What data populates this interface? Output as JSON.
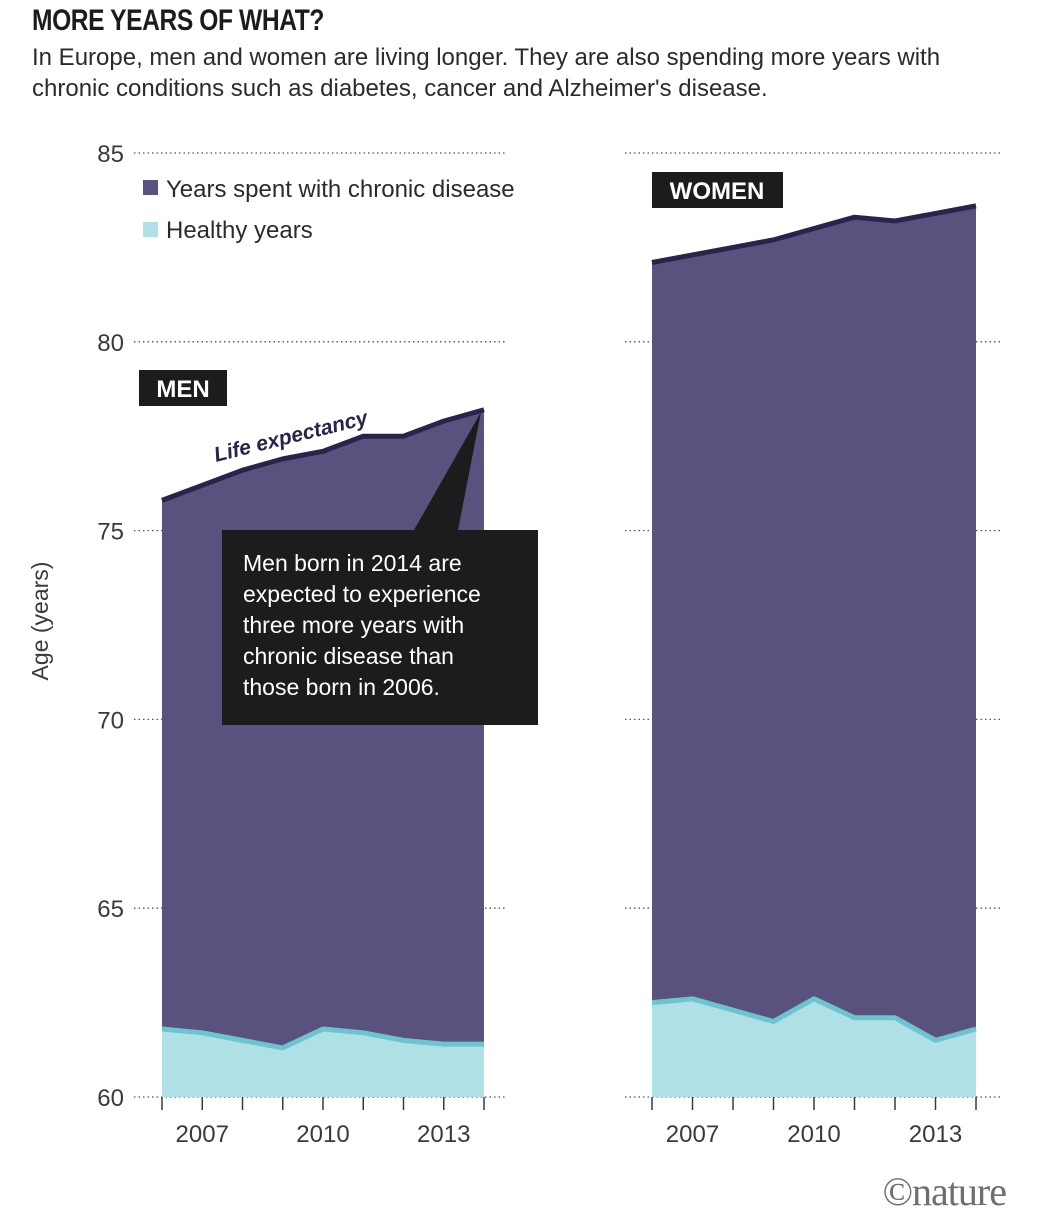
{
  "header": {
    "title": "MORE YEARS OF WHAT?",
    "subtitle": "In Europe, men and women are living longer. They are also spending more years with chronic conditions such as diabetes, cancer and Alzheimer's disease."
  },
  "colors": {
    "chronic": "#5a527e",
    "healthy": "#aee0e6",
    "line": "#27254b",
    "healthy_line": "#6cc4cf",
    "label_bg": "#1c1c1c",
    "grid": "#555555"
  },
  "chart_data": {
    "type": "area",
    "ylabel": "Age (years)",
    "ylim": [
      60,
      85
    ],
    "yticks": [
      60,
      65,
      70,
      75,
      80,
      85
    ],
    "xticks": [
      2007,
      2010,
      2013
    ],
    "x": [
      2006,
      2007,
      2008,
      2009,
      2010,
      2011,
      2012,
      2013,
      2014
    ],
    "legend": [
      {
        "name": "Years spent with chronic disease",
        "color_key": "chronic"
      },
      {
        "name": "Healthy years",
        "color_key": "healthy"
      }
    ],
    "panels": [
      {
        "label": "MEN",
        "series": [
          {
            "name": "Life expectancy",
            "values": [
              75.8,
              76.2,
              76.6,
              76.9,
              77.1,
              77.5,
              77.5,
              77.9,
              78.2
            ]
          },
          {
            "name": "Healthy years",
            "values": [
              61.8,
              61.7,
              61.5,
              61.3,
              61.8,
              61.7,
              61.5,
              61.4,
              61.4
            ]
          }
        ],
        "line_annotation": "Life expectancy",
        "callout": "Men born in 2014 are expected to experience three more years with chronic disease than those born in 2006."
      },
      {
        "label": "WOMEN",
        "series": [
          {
            "name": "Life expectancy",
            "values": [
              82.1,
              82.3,
              82.5,
              82.7,
              83.0,
              83.3,
              83.2,
              83.4,
              83.6
            ]
          },
          {
            "name": "Healthy years",
            "values": [
              62.5,
              62.6,
              62.3,
              62.0,
              62.6,
              62.1,
              62.1,
              61.5,
              61.8
            ]
          }
        ]
      }
    ]
  },
  "credit": "©nature"
}
